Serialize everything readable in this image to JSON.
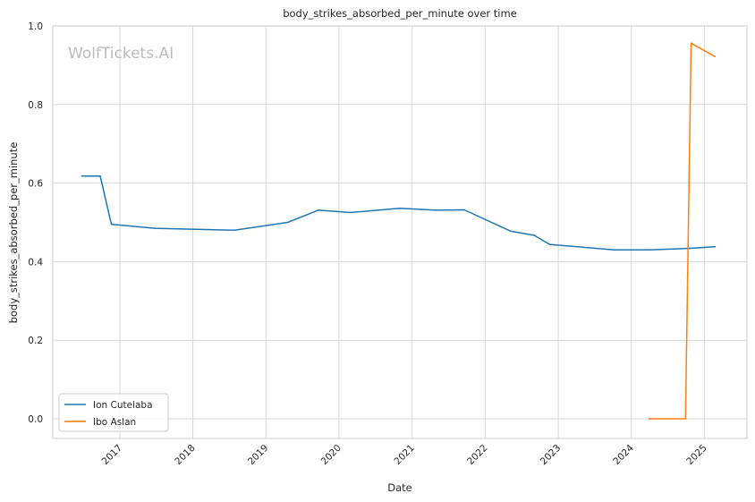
{
  "chart_data": {
    "type": "line",
    "title": "body_strikes_absorbed_per_minute over time",
    "xlabel": "Date",
    "ylabel": "body_strikes_absorbed_per_minute",
    "watermark": "WolfTickets.AI",
    "xlim": [
      "2016-02-01",
      "2025-08-01"
    ],
    "ylim": [
      -0.05,
      1.0
    ],
    "x_ticks": [
      "2017",
      "2018",
      "2019",
      "2020",
      "2021",
      "2022",
      "2023",
      "2024",
      "2025"
    ],
    "y_ticks": [
      "0.0",
      "0.2",
      "0.4",
      "0.6",
      "0.8",
      "1.0"
    ],
    "grid": true,
    "legend_position": "lower-left",
    "series": [
      {
        "name": "Ion Cutelaba",
        "color": "#1f77b4",
        "points": [
          {
            "x": "2016-06-25",
            "y": 0.618
          },
          {
            "x": "2016-09-25",
            "y": 0.618
          },
          {
            "x": "2016-11-20",
            "y": 0.495
          },
          {
            "x": "2017-06-25",
            "y": 0.485
          },
          {
            "x": "2018-07-28",
            "y": 0.48
          },
          {
            "x": "2019-04-20",
            "y": 0.5
          },
          {
            "x": "2019-09-20",
            "y": 0.531
          },
          {
            "x": "2020-02-28",
            "y": 0.525
          },
          {
            "x": "2020-10-31",
            "y": 0.536
          },
          {
            "x": "2021-05-01",
            "y": 0.531
          },
          {
            "x": "2021-09-18",
            "y": 0.532
          },
          {
            "x": "2022-05-07",
            "y": 0.478
          },
          {
            "x": "2022-09-03",
            "y": 0.467
          },
          {
            "x": "2022-11-19",
            "y": 0.444
          },
          {
            "x": "2023-10-07",
            "y": 0.43
          },
          {
            "x": "2024-03-30",
            "y": 0.43
          },
          {
            "x": "2024-10-19",
            "y": 0.434
          },
          {
            "x": "2025-02-22",
            "y": 0.438
          }
        ]
      },
      {
        "name": "Ibo Aslan",
        "color": "#ff7f0e",
        "points": [
          {
            "x": "2024-03-30",
            "y": 0.0
          },
          {
            "x": "2024-09-28",
            "y": 0.0
          },
          {
            "x": "2024-10-26",
            "y": 0.956
          },
          {
            "x": "2025-02-22",
            "y": 0.922
          }
        ]
      }
    ]
  }
}
